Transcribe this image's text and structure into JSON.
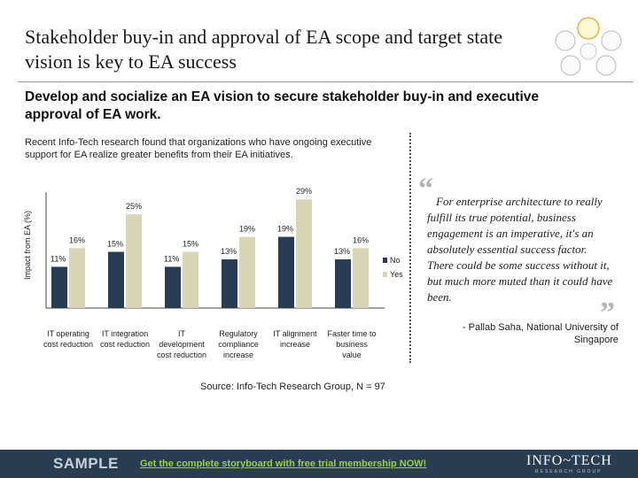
{
  "title": "Stakeholder buy-in and approval of EA scope and target state vision is key to EA success",
  "subtitle": "Develop and socialize an EA vision to secure stakeholder buy-in and executive approval of EA work.",
  "intro": "Recent Info-Tech research found that organizations who have ongoing executive support for EA realize greater benefits from their EA initiatives.",
  "chart_data": {
    "type": "bar",
    "title": "",
    "xlabel": "",
    "ylabel": "Impact from EA (%)",
    "ylim": [
      0,
      30
    ],
    "categories": [
      [
        "IT operating",
        "cost reduction"
      ],
      [
        "IT integration",
        "cost reduction"
      ],
      [
        "IT",
        "development",
        "cost reduction"
      ],
      [
        "Regulatory",
        "compliance",
        "increase"
      ],
      [
        "IT alignment",
        "increase"
      ],
      [
        "Faster time to",
        "business",
        "value"
      ]
    ],
    "series": [
      {
        "name": "No",
        "color": "#283c52",
        "values": [
          11,
          15,
          11,
          13,
          19,
          13
        ],
        "labels": [
          "11%",
          "15%",
          "11%",
          "13%",
          "19%",
          "13%"
        ]
      },
      {
        "name": "Yes",
        "color": "#d8d6b6",
        "values": [
          16,
          25,
          15,
          19,
          29,
          16
        ],
        "labels": [
          "16%",
          "25%",
          "15%",
          "19%",
          "29%",
          "16%"
        ]
      }
    ],
    "legend": [
      "No",
      "Yes"
    ]
  },
  "quote": {
    "text": "For enterprise architecture to really fulfill its true potential, business engagement is an imperative, it's an absolutely essential success factor. There could be some success without it, but much more muted than it could have been.",
    "attribution": "- Pallab Saha, National University of Singapore"
  },
  "source": "Source: Info-Tech Research Group, N = 97",
  "footer": {
    "sample": "SAMPLE",
    "cta": "Get the complete storyboard with free trial membership NOW!",
    "brand": "INFO~TECH",
    "brand_sub": "RESEARCH GROUP"
  },
  "colors": {
    "accent": "#283c52",
    "yes": "#d8d6b6",
    "cta": "#9fd13b"
  }
}
